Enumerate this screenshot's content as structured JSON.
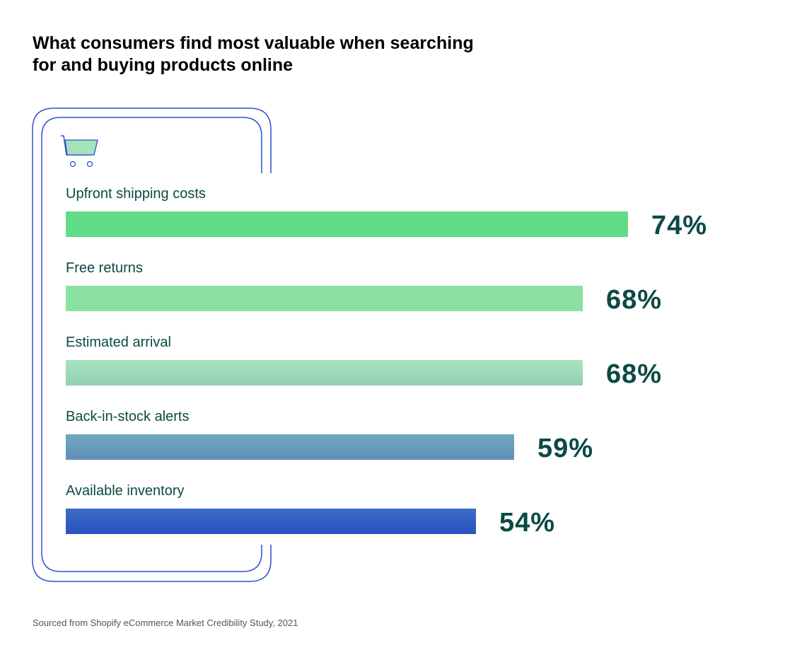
{
  "chart_data": {
    "type": "bar",
    "orientation": "horizontal",
    "title": "What consumers find most valuable when searching for and buying products online",
    "categories": [
      "Upfront shipping costs",
      "Free returns",
      "Estimated arrival",
      "Back-in-stock alerts",
      "Available inventory"
    ],
    "values": [
      74,
      68,
      68,
      59,
      54
    ],
    "value_labels": [
      "74%",
      "68%",
      "68%",
      "59%",
      "54%"
    ],
    "unit": "%",
    "grid": false,
    "bar_colors": [
      [
        "#62dc86",
        "#62dc86"
      ],
      [
        "#8ae1a0",
        "#8ae1a0"
      ],
      [
        "#a7e3bd",
        "#94cfb6"
      ],
      [
        "#71a9bf",
        "#5f8eb9"
      ],
      [
        "#3b6cc5",
        "#2a52be"
      ]
    ],
    "label_color": "#0b4a44",
    "source": "Sourced from Shopify eCommerce Market Credibility Study, 2021"
  },
  "icon": "shopping-cart-icon",
  "frame_color": "#2d4fd0"
}
